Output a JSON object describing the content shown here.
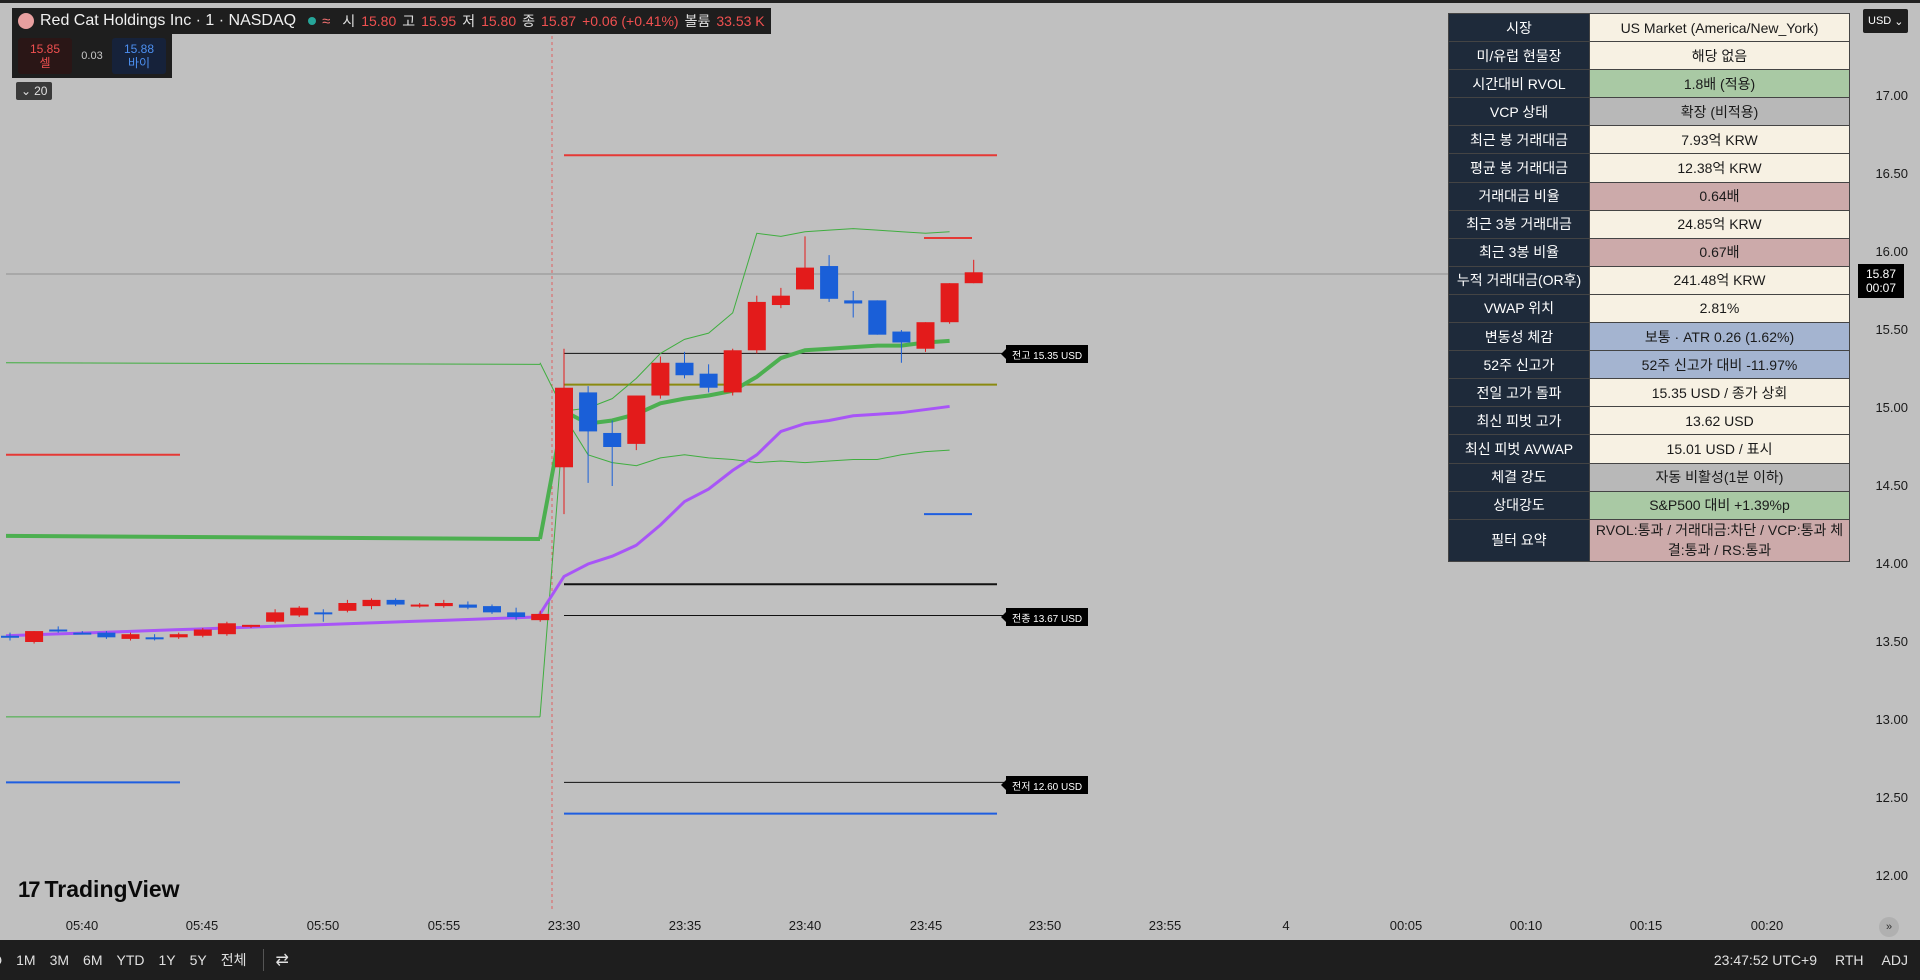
{
  "legend": {
    "title": "Red Cat Holdings Inc · 1 · NASDAQ",
    "wave": "≈",
    "open_label": "시",
    "open": "15.80",
    "high_label": "고",
    "high": "15.95",
    "low_label": "저",
    "low": "15.80",
    "close_label": "종",
    "close": "15.87",
    "change": "+0.06 (+0.41%)",
    "volume_label": "볼륨",
    "volume": "33.53 K"
  },
  "trade": {
    "sell_price": "15.85",
    "sell_label": "셀",
    "spread": "0.03",
    "buy_price": "15.88",
    "buy_label": "바이"
  },
  "collapse": {
    "count": "20"
  },
  "table": [
    {
      "label": "시장",
      "value": "US Market (America/New_York)",
      "color": "cream"
    },
    {
      "label": "미/유럽 현물장",
      "value": "해당 없음",
      "color": "cream"
    },
    {
      "label": "시간대비 RVOL",
      "value": "1.8배 (적용)",
      "color": "green"
    },
    {
      "label": "VCP 상태",
      "value": "확장 (비적용)",
      "color": "gray"
    },
    {
      "label": "최근 봉 거래대금",
      "value": "7.93억 KRW",
      "color": "cream"
    },
    {
      "label": "평균 봉 거래대금",
      "value": "12.38억 KRW",
      "color": "cream"
    },
    {
      "label": "거래대금 비율",
      "value": "0.64배",
      "color": "pink"
    },
    {
      "label": "최근 3봉 거래대금",
      "value": "24.85억 KRW",
      "color": "cream"
    },
    {
      "label": "최근 3봉 비율",
      "value": "0.67배",
      "color": "pink"
    },
    {
      "label": "누적 거래대금(OR후)",
      "value": "241.48억 KRW",
      "color": "cream"
    },
    {
      "label": "VWAP 위치",
      "value": "2.81%",
      "color": "cream"
    },
    {
      "label": "변동성 체감",
      "value": "보통 · ATR 0.26 (1.62%)",
      "color": "blue"
    },
    {
      "label": "52주 신고가",
      "value": "52주 신고가 대비 -11.97%",
      "color": "blue"
    },
    {
      "label": "전일 고가 돌파",
      "value": "15.35 USD / 종가 상회",
      "color": "cream"
    },
    {
      "label": "최신 피벗 고가",
      "value": "13.62 USD",
      "color": "cream"
    },
    {
      "label": "최신 피벗 AVWAP",
      "value": "15.01 USD / 표시",
      "color": "cream"
    },
    {
      "label": "체결 강도",
      "value": "자동 비활성(1분 이하)",
      "color": "gray"
    },
    {
      "label": "상대강도",
      "value": "S&P500 대비 +1.39%p",
      "color": "green"
    },
    {
      "label": "필터 요약",
      "value": "RVOL:통과 / 거래대금:차단 / VCP:통과 체결:통과 / RS:통과",
      "color": "pink"
    }
  ],
  "price_axis": {
    "ticks": [
      "17.00",
      "16.50",
      "16.00",
      "15.50",
      "15.00",
      "14.50",
      "14.00",
      "13.50",
      "13.00",
      "12.50",
      "12.00"
    ],
    "current_price": "15.87",
    "countdown": "00:07",
    "currency": "USD"
  },
  "time_axis": {
    "ticks": [
      "05:40",
      "05:45",
      "05:50",
      "05:55",
      "23:30",
      "23:35",
      "23:40",
      "23:45",
      "23:50",
      "23:55",
      "4",
      "00:05",
      "00:10",
      "00:15",
      "00:20"
    ]
  },
  "line_labels": {
    "prev_high": "전고 15.35 USD",
    "prev_close": "전종 13.67 USD",
    "prev_low": "전저 12.60 USD"
  },
  "brand": "TradingView",
  "bottom": {
    "ranges": [
      "D",
      "1M",
      "3M",
      "6M",
      "YTD",
      "1Y",
      "5Y",
      "전체"
    ],
    "clock": "23:47:52 UTC+9",
    "session": "RTH",
    "adj": "ADJ"
  },
  "chart_data": {
    "type": "candlestick",
    "ylim": [
      11.9,
      17.25
    ],
    "premarket": [
      {
        "o": 13.53,
        "h": 13.56,
        "l": 13.51,
        "c": 13.54,
        "dir": "down"
      },
      {
        "o": 13.5,
        "h": 13.57,
        "l": 13.49,
        "c": 13.57,
        "dir": "up"
      },
      {
        "o": 13.58,
        "h": 13.6,
        "l": 13.56,
        "c": 13.57,
        "dir": "down"
      },
      {
        "o": 13.56,
        "h": 13.57,
        "l": 13.55,
        "c": 13.56,
        "dir": "down"
      },
      {
        "o": 13.56,
        "h": 13.57,
        "l": 13.52,
        "c": 13.53,
        "dir": "down"
      },
      {
        "o": 13.52,
        "h": 13.56,
        "l": 13.51,
        "c": 13.55,
        "dir": "up"
      },
      {
        "o": 13.53,
        "h": 13.55,
        "l": 13.51,
        "c": 13.52,
        "dir": "down"
      },
      {
        "o": 13.53,
        "h": 13.56,
        "l": 13.52,
        "c": 13.55,
        "dir": "up"
      },
      {
        "o": 13.54,
        "h": 13.59,
        "l": 13.53,
        "c": 13.58,
        "dir": "up"
      },
      {
        "o": 13.55,
        "h": 13.63,
        "l": 13.54,
        "c": 13.62,
        "dir": "up"
      },
      {
        "o": 13.6,
        "h": 13.61,
        "l": 13.59,
        "c": 13.61,
        "dir": "up"
      },
      {
        "o": 13.63,
        "h": 13.71,
        "l": 13.62,
        "c": 13.69,
        "dir": "up"
      },
      {
        "o": 13.67,
        "h": 13.73,
        "l": 13.66,
        "c": 13.72,
        "dir": "up"
      },
      {
        "o": 13.68,
        "h": 13.71,
        "l": 13.63,
        "c": 13.69,
        "dir": "down"
      },
      {
        "o": 13.7,
        "h": 13.77,
        "l": 13.69,
        "c": 13.75,
        "dir": "up"
      },
      {
        "o": 13.73,
        "h": 13.78,
        "l": 13.71,
        "c": 13.77,
        "dir": "up"
      },
      {
        "o": 13.77,
        "h": 13.78,
        "l": 13.73,
        "c": 13.74,
        "dir": "down"
      },
      {
        "o": 13.73,
        "h": 13.75,
        "l": 13.72,
        "c": 13.74,
        "dir": "up"
      },
      {
        "o": 13.73,
        "h": 13.77,
        "l": 13.72,
        "c": 13.75,
        "dir": "up"
      },
      {
        "o": 13.74,
        "h": 13.76,
        "l": 13.71,
        "c": 13.72,
        "dir": "down"
      },
      {
        "o": 13.73,
        "h": 13.74,
        "l": 13.68,
        "c": 13.69,
        "dir": "down"
      },
      {
        "o": 13.69,
        "h": 13.72,
        "l": 13.64,
        "c": 13.66,
        "dir": "down"
      },
      {
        "o": 13.64,
        "h": 13.7,
        "l": 13.63,
        "c": 13.68,
        "dir": "up"
      }
    ],
    "session": [
      {
        "o": 14.62,
        "h": 15.38,
        "l": 14.32,
        "c": 15.13,
        "dir": "up"
      },
      {
        "o": 15.1,
        "h": 15.14,
        "l": 14.52,
        "c": 14.85,
        "dir": "down"
      },
      {
        "o": 14.84,
        "h": 14.92,
        "l": 14.5,
        "c": 14.75,
        "dir": "down"
      },
      {
        "o": 14.77,
        "h": 15.08,
        "l": 14.73,
        "c": 15.08,
        "dir": "up"
      },
      {
        "o": 15.08,
        "h": 15.33,
        "l": 15.06,
        "c": 15.29,
        "dir": "up"
      },
      {
        "o": 15.29,
        "h": 15.36,
        "l": 15.19,
        "c": 15.21,
        "dir": "down"
      },
      {
        "o": 15.22,
        "h": 15.28,
        "l": 15.1,
        "c": 15.13,
        "dir": "down"
      },
      {
        "o": 15.1,
        "h": 15.38,
        "l": 15.08,
        "c": 15.37,
        "dir": "up"
      },
      {
        "o": 15.37,
        "h": 15.72,
        "l": 15.35,
        "c": 15.68,
        "dir": "up"
      },
      {
        "o": 15.66,
        "h": 15.77,
        "l": 15.64,
        "c": 15.72,
        "dir": "up"
      },
      {
        "o": 15.76,
        "h": 16.1,
        "l": 15.76,
        "c": 15.9,
        "dir": "up"
      },
      {
        "o": 15.91,
        "h": 15.98,
        "l": 15.68,
        "c": 15.7,
        "dir": "down"
      },
      {
        "o": 15.69,
        "h": 15.75,
        "l": 15.58,
        "c": 15.67,
        "dir": "down"
      },
      {
        "o": 15.69,
        "h": 15.69,
        "l": 15.47,
        "c": 15.47,
        "dir": "down"
      },
      {
        "o": 15.49,
        "h": 15.5,
        "l": 15.29,
        "c": 15.42,
        "dir": "down"
      },
      {
        "o": 15.38,
        "h": 15.55,
        "l": 15.36,
        "c": 15.55,
        "dir": "up"
      },
      {
        "o": 15.55,
        "h": 15.8,
        "l": 15.54,
        "c": 15.8,
        "dir": "up"
      },
      {
        "o": 15.8,
        "h": 15.95,
        "l": 15.8,
        "c": 15.87,
        "dir": "up"
      }
    ],
    "lines": {
      "vwap_green_pre": 14.18,
      "upper_band_pre": 15.29,
      "lower_band_pre": 13.02,
      "pre_red_level": 14.7,
      "pre_blue_level": 12.6,
      "red_top": 16.62,
      "black_mid": 13.87,
      "blue_bottom": 12.4,
      "prev_high": 15.35,
      "prev_close": 13.67,
      "prev_low": 12.6,
      "olive": 15.15,
      "red_small": 16.09,
      "blue_small": 14.32,
      "vwap_session": [
        14.98,
        14.9,
        14.92,
        14.96,
        15.03,
        15.06,
        15.08,
        15.11,
        15.2,
        15.32,
        15.37,
        15.38,
        15.39,
        15.4,
        15.4,
        15.42,
        15.43
      ],
      "upper_session": [
        14.98,
        15.0,
        15.06,
        15.19,
        15.35,
        15.44,
        15.48,
        15.61,
        16.12,
        16.1,
        16.13,
        16.14,
        16.15,
        16.14,
        16.13,
        16.12,
        16.13
      ],
      "lower_session": [
        14.95,
        14.7,
        14.65,
        14.63,
        14.68,
        14.7,
        14.68,
        14.67,
        14.65,
        14.66,
        14.65,
        14.66,
        14.67,
        14.67,
        14.7,
        14.72,
        14.73
      ],
      "purple_pre": 13.55,
      "purple_session": [
        13.92,
        14.0,
        14.05,
        14.12,
        14.25,
        14.4,
        14.48,
        14.6,
        14.7,
        14.85,
        14.9,
        14.92,
        14.95,
        14.96,
        14.97,
        14.99,
        15.01
      ]
    }
  }
}
